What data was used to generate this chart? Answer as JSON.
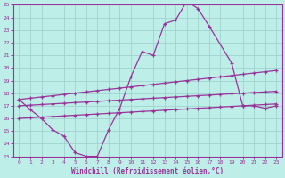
{
  "bg_color": "#beeee8",
  "grid_color": "#99cccc",
  "line_color": "#993399",
  "xlabel": "Windchill (Refroidissement éolien,°C)",
  "xlim": [
    -0.5,
    23.5
  ],
  "ylim": [
    13,
    25
  ],
  "yticks": [
    13,
    14,
    15,
    16,
    17,
    18,
    19,
    20,
    21,
    22,
    23,
    24,
    25
  ],
  "xticks": [
    0,
    1,
    2,
    3,
    4,
    5,
    6,
    7,
    8,
    9,
    10,
    11,
    12,
    13,
    14,
    15,
    16,
    17,
    18,
    19,
    20,
    21,
    22,
    23
  ],
  "line1_x": [
    0,
    1,
    2,
    3,
    4,
    5,
    6,
    7,
    8,
    9,
    10,
    11,
    12,
    13,
    14,
    15,
    16,
    17,
    19,
    20,
    21,
    22,
    23
  ],
  "line1_y": [
    17.5,
    16.7,
    16.0,
    15.1,
    14.6,
    13.3,
    13.0,
    13.0,
    15.1,
    16.8,
    19.3,
    21.3,
    21.0,
    23.5,
    23.8,
    25.3,
    24.7,
    23.3,
    20.4,
    17.0,
    17.0,
    16.8,
    17.0
  ],
  "line2_x": [
    0,
    1,
    2,
    3,
    4,
    5,
    6,
    7,
    8,
    9,
    10,
    11,
    12,
    13,
    14,
    15,
    16,
    17,
    18,
    19,
    20,
    21,
    22,
    23
  ],
  "line2_y": [
    17.5,
    17.6,
    17.7,
    17.8,
    17.9,
    18.0,
    18.1,
    18.2,
    18.3,
    18.4,
    18.5,
    18.6,
    18.7,
    18.8,
    18.9,
    19.0,
    19.1,
    19.2,
    19.3,
    19.4,
    19.5,
    19.6,
    19.7,
    19.8
  ],
  "line3_x": [
    0,
    1,
    2,
    3,
    4,
    5,
    6,
    7,
    8,
    9,
    10,
    11,
    12,
    13,
    14,
    15,
    16,
    17,
    18,
    19,
    20,
    21,
    22,
    23
  ],
  "line3_y": [
    17.0,
    17.05,
    17.1,
    17.15,
    17.2,
    17.25,
    17.3,
    17.35,
    17.4,
    17.45,
    17.5,
    17.55,
    17.6,
    17.65,
    17.7,
    17.75,
    17.8,
    17.85,
    17.9,
    17.95,
    18.0,
    18.05,
    18.1,
    18.15
  ],
  "line4_x": [
    0,
    1,
    2,
    3,
    4,
    5,
    6,
    7,
    8,
    9,
    10,
    11,
    12,
    13,
    14,
    15,
    16,
    17,
    18,
    19,
    20,
    21,
    22,
    23
  ],
  "line4_y": [
    16.0,
    16.05,
    16.1,
    16.15,
    16.2,
    16.25,
    16.3,
    16.35,
    16.4,
    16.45,
    16.5,
    16.55,
    16.6,
    16.65,
    16.7,
    16.75,
    16.8,
    16.85,
    16.9,
    16.95,
    17.0,
    17.05,
    17.1,
    17.15
  ]
}
